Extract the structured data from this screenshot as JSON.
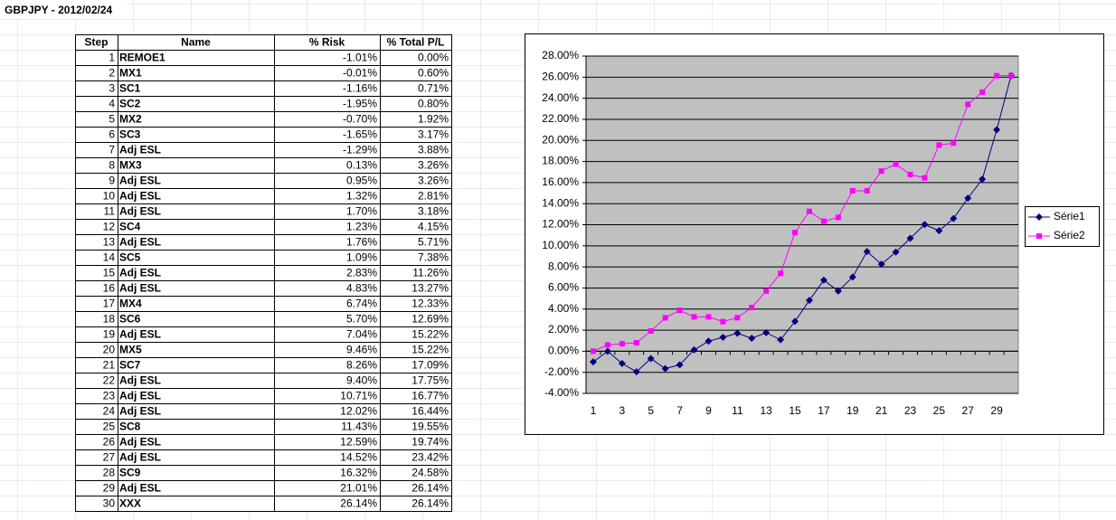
{
  "title": "GBPJPY - 2012/02/24",
  "table": {
    "header": [
      "Step",
      "Name",
      "% Risk",
      "% Total P/L"
    ],
    "rows": [
      [
        1,
        "REMOE1",
        "-1.01%",
        "0.00%"
      ],
      [
        2,
        "MX1",
        "-0.01%",
        "0.60%"
      ],
      [
        3,
        "SC1",
        "-1.16%",
        "0.71%"
      ],
      [
        4,
        "SC2",
        "-1.95%",
        "0.80%"
      ],
      [
        5,
        "MX2",
        "-0.70%",
        "1.92%"
      ],
      [
        6,
        "SC3",
        "-1.65%",
        "3.17%"
      ],
      [
        7,
        "Adj ESL",
        "-1.29%",
        "3.88%"
      ],
      [
        8,
        "MX3",
        "0.13%",
        "3.26%"
      ],
      [
        9,
        "Adj ESL",
        "0.95%",
        "3.26%"
      ],
      [
        10,
        "Adj ESL",
        "1.32%",
        "2.81%"
      ],
      [
        11,
        "Adj ESL",
        "1.70%",
        "3.18%"
      ],
      [
        12,
        "SC4",
        "1.23%",
        "4.15%"
      ],
      [
        13,
        "Adj ESL",
        "1.76%",
        "5.71%"
      ],
      [
        14,
        "SC5",
        "1.09%",
        "7.38%"
      ],
      [
        15,
        "Adj ESL",
        "2.83%",
        "11.26%"
      ],
      [
        16,
        "Adj ESL",
        "4.83%",
        "13.27%"
      ],
      [
        17,
        "MX4",
        "6.74%",
        "12.33%"
      ],
      [
        18,
        "SC6",
        "5.70%",
        "12.69%"
      ],
      [
        19,
        "Adj ESL",
        "7.04%",
        "15.22%"
      ],
      [
        20,
        "MX5",
        "9.46%",
        "15.22%"
      ],
      [
        21,
        "SC7",
        "8.26%",
        "17.09%"
      ],
      [
        22,
        "Adj ESL",
        "9.40%",
        "17.75%"
      ],
      [
        23,
        "Adj ESL",
        "10.71%",
        "16.77%"
      ],
      [
        24,
        "Adj ESL",
        "12.02%",
        "16.44%"
      ],
      [
        25,
        "SC8",
        "11.43%",
        "19.55%"
      ],
      [
        26,
        "Adj ESL",
        "12.59%",
        "19.74%"
      ],
      [
        27,
        "Adj ESL",
        "14.52%",
        "23.42%"
      ],
      [
        28,
        "SC9",
        "16.32%",
        "24.58%"
      ],
      [
        29,
        "Adj ESL",
        "21.01%",
        "26.14%"
      ],
      [
        30,
        "XXX",
        "26.14%",
        "26.14%"
      ]
    ]
  },
  "chart_data": {
    "type": "line",
    "categories": [
      1,
      null,
      3,
      null,
      5,
      null,
      7,
      null,
      9,
      null,
      11,
      null,
      13,
      null,
      15,
      null,
      17,
      null,
      19,
      null,
      21,
      null,
      23,
      null,
      25,
      null,
      27,
      null,
      29,
      null
    ],
    "series": [
      {
        "name": "Série1",
        "color": "#000080",
        "marker": "diamond",
        "values": [
          -1.01,
          -0.01,
          -1.16,
          -1.95,
          -0.7,
          -1.65,
          -1.29,
          0.13,
          0.95,
          1.32,
          1.7,
          1.23,
          1.76,
          1.09,
          2.83,
          4.83,
          6.74,
          5.7,
          7.04,
          9.46,
          8.26,
          9.4,
          10.71,
          12.02,
          11.43,
          12.59,
          14.52,
          16.32,
          21.01,
          26.14
        ]
      },
      {
        "name": "Série2",
        "color": "#ff00ff",
        "marker": "square",
        "values": [
          0.0,
          0.6,
          0.71,
          0.8,
          1.92,
          3.17,
          3.88,
          3.26,
          3.26,
          2.81,
          3.18,
          4.15,
          5.71,
          7.38,
          11.26,
          13.27,
          12.33,
          12.69,
          15.22,
          15.22,
          17.09,
          17.75,
          16.77,
          16.44,
          19.55,
          19.74,
          23.42,
          24.58,
          26.14,
          26.14
        ]
      }
    ],
    "ylim": [
      -4,
      28
    ],
    "yticks": [
      {
        "value": -4,
        "label": "-4.00%"
      },
      {
        "value": -2,
        "label": "-2.00%"
      },
      {
        "value": 0,
        "label": "0.00%"
      },
      {
        "value": 2,
        "label": "2.00%"
      },
      {
        "value": 4,
        "label": "4.00%"
      },
      {
        "value": 6,
        "label": "6.00%"
      },
      {
        "value": 8,
        "label": "8.00%"
      },
      {
        "value": 10,
        "label": "10.00%"
      },
      {
        "value": 12,
        "label": "12.00%"
      },
      {
        "value": 14,
        "label": "14.00%"
      },
      {
        "value": 16,
        "label": "16.00%"
      },
      {
        "value": 18,
        "label": "18.00%"
      },
      {
        "value": 20,
        "label": "20.00%"
      },
      {
        "value": 22,
        "label": "22.00%"
      },
      {
        "value": 24,
        "label": "24.00%"
      },
      {
        "value": 26,
        "label": "26.00%"
      },
      {
        "value": 28,
        "label": "28.00%"
      }
    ],
    "grid": true,
    "legend": "right",
    "plot_background": "#c0c0c0"
  }
}
